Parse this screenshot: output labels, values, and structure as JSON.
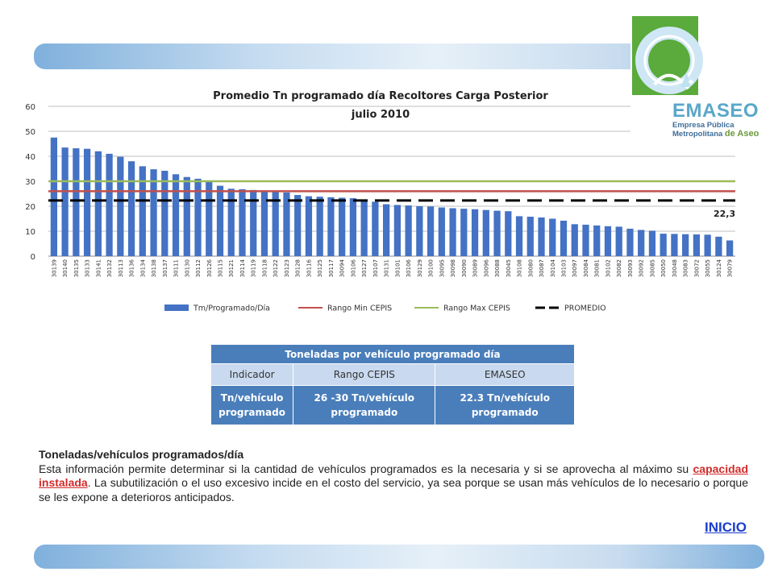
{
  "chart_data": {
    "type": "bar",
    "title": "Promedio Tn programado día Recoltores Carga Posterior",
    "subtitle": "julio 2010",
    "categories": [
      "30139",
      "30140",
      "30135",
      "30133",
      "30141",
      "30132",
      "30113",
      "30136",
      "30134",
      "30138",
      "30137",
      "30111",
      "30130",
      "30112",
      "30126",
      "30115",
      "30121",
      "30114",
      "30119",
      "30118",
      "30122",
      "30123",
      "30128",
      "30116",
      "30125",
      "30117",
      "30094",
      "30106",
      "30127",
      "30107",
      "30131",
      "30101",
      "30106",
      "30129",
      "30100",
      "30095",
      "30098",
      "30090",
      "30089",
      "30096",
      "30088",
      "30045",
      "30108",
      "30080",
      "30087",
      "30104",
      "30103",
      "30097",
      "30084",
      "30081",
      "30102",
      "30082",
      "30093",
      "30092",
      "30085",
      "30050",
      "30048",
      "30083",
      "30072",
      "30055",
      "30124",
      "30079"
    ],
    "series": [
      {
        "name": "Tm/Programado/Día",
        "kind": "bar",
        "color": "#4472c4",
        "values": [
          47.5,
          43.5,
          43.2,
          43.0,
          42.0,
          41.0,
          39.8,
          38.0,
          36.0,
          34.8,
          34.2,
          32.8,
          31.7,
          31.0,
          30.0,
          28.2,
          27.0,
          26.8,
          26.5,
          26.2,
          26.0,
          25.5,
          24.5,
          24.0,
          23.8,
          23.6,
          23.4,
          23.2,
          22.0,
          21.8,
          20.8,
          20.5,
          20.3,
          20.0,
          19.9,
          19.5,
          19.2,
          19.0,
          18.8,
          18.5,
          18.2,
          18.0,
          16.0,
          15.8,
          15.5,
          15.0,
          14.2,
          12.8,
          12.6,
          12.3,
          12.0,
          11.8,
          11.0,
          10.5,
          10.2,
          9.0,
          8.9,
          8.8,
          8.7,
          8.6,
          7.8,
          6.3
        ]
      },
      {
        "name": "Rango Min CEPIS",
        "kind": "line",
        "color": "#c0504d",
        "value": 26
      },
      {
        "name": "Rango Max CEPIS",
        "kind": "line",
        "color": "#9bbb59",
        "value": 30
      },
      {
        "name": "PROMEDIO",
        "kind": "dashed-line",
        "color": "#000000",
        "value": 22.3
      }
    ],
    "promedio_label": "22,3",
    "yticks": [
      "0",
      "10",
      "20",
      "30",
      "40",
      "50",
      "60"
    ],
    "ylim": [
      0,
      60
    ],
    "grid": true,
    "legend": "bottom"
  },
  "table": {
    "title": "Toneladas por vehículo programado día",
    "headers": [
      "Indicador",
      "Rango CEPIS",
      "EMASEO"
    ],
    "row": [
      "Tn/vehículo programado",
      "26 -30 Tn/vehículo programado",
      "22.3 Tn/vehículo programado"
    ]
  },
  "description": {
    "title": "Toneladas/vehículos programados/día",
    "before": "Esta información permite determinar si la cantidad de vehículos programados es la necesaria y si se aprovecha al máximo su ",
    "link": "capacidad instalada",
    "after": ". La subutilización o el uso excesivo incide en el costo del servicio, ya sea porque se usan más vehículos de lo necesario o porque se les expone a deterioros anticipados."
  },
  "nav": {
    "inicio": "INICIO"
  },
  "logo": {
    "name": "EMASEO",
    "line1": "Empresa Pública",
    "line2_a": "Metropolitana ",
    "line2_b": "de Aseo"
  }
}
